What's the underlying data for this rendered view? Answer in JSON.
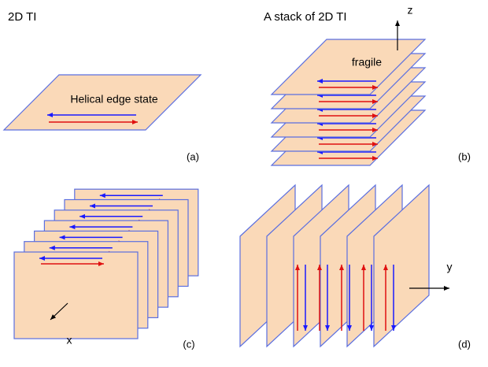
{
  "panel_a": {
    "title": "2D TI",
    "annotation": "Helical edge state",
    "label": "(a)"
  },
  "panel_b": {
    "title": "A stack of 2D TI",
    "axis_label": "z",
    "annotation": "fragile",
    "label": "(b)"
  },
  "panel_c": {
    "axis_label": "x",
    "label": "(c)"
  },
  "panel_d": {
    "axis_label": "y",
    "label": "(d)"
  }
}
